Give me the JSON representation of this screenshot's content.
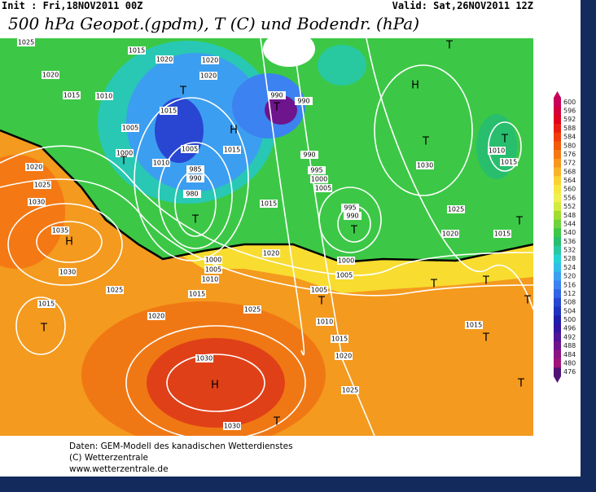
{
  "header": {
    "init": "Init : Fri,18NOV2011 00Z",
    "valid": "Valid: Sat,26NOV2011 12Z",
    "title": "500 hPa Geopot.(gpdm), T (C) und Bodendr. (hPa)"
  },
  "map": {
    "labels": [
      "1025",
      "1020",
      "1015",
      "1010",
      "1015",
      "1020",
      "1020",
      "1020",
      "T",
      "1015",
      "1005",
      "H",
      "1015",
      "1000",
      "T",
      "1010",
      "1005",
      "985",
      "990",
      "980",
      "T",
      "990",
      "990",
      "T",
      "H",
      "T",
      "T",
      "1030",
      "990",
      "995",
      "1000",
      "1005",
      "1015",
      "995",
      "990",
      "T",
      "1025",
      "T",
      "1020",
      "1015",
      "T",
      "1010",
      "1015",
      "1020",
      "1025",
      "1030",
      "1035",
      "H",
      "1030",
      "1025",
      "1015",
      "T",
      "1020",
      "1020",
      "1000",
      "1005",
      "1010",
      "1015",
      "1000",
      "1005",
      "1005",
      "T",
      "1025",
      "1010",
      "1015",
      "1020",
      "1030",
      "H",
      "1025",
      "1030",
      "T",
      "T",
      "1015",
      "T",
      "T",
      "T",
      "T"
    ]
  },
  "legend": {
    "values": [
      600,
      596,
      592,
      588,
      584,
      580,
      576,
      572,
      568,
      564,
      560,
      556,
      552,
      548,
      544,
      540,
      536,
      532,
      528,
      524,
      520,
      516,
      512,
      508,
      504,
      500,
      496,
      492,
      488,
      484,
      480,
      476
    ],
    "colors": [
      "#c8005a",
      "#d4003c",
      "#e00020",
      "#e81e10",
      "#f03c0a",
      "#f05a0a",
      "#f47814",
      "#f8961e",
      "#f8b428",
      "#fad232",
      "#f8e640",
      "#f0f050",
      "#d2eb3c",
      "#a0dc32",
      "#6ed23c",
      "#3cc846",
      "#28be6e",
      "#28c8a0",
      "#28d2d2",
      "#32beeb",
      "#3ca0f0",
      "#3c82f0",
      "#3264e6",
      "#2846d2",
      "#1e32be",
      "#1e1eaa",
      "#3214a0",
      "#501496",
      "#6e148c",
      "#8c1482",
      "#a01478",
      "#501478"
    ]
  },
  "footer": {
    "lines": [
      "Daten: GEM-Modell des kanadischen Wetterdienstes",
      "(C) Wetterzentrale",
      "www.wetterzentrale.de"
    ]
  }
}
